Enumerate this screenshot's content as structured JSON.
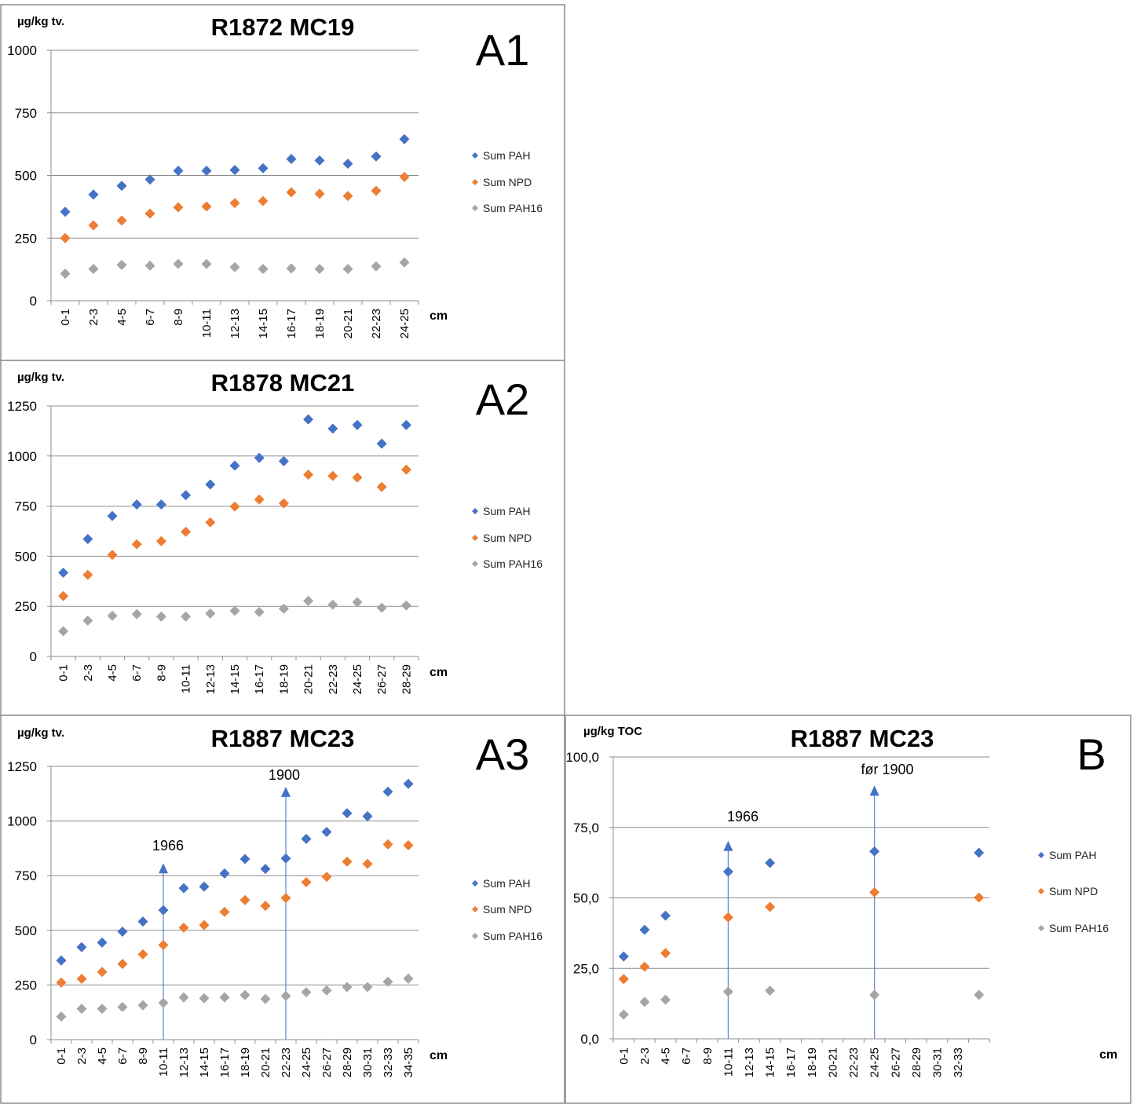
{
  "colors": {
    "Sum PAH": "#4472C4",
    "Sum NPD": "#ED7D31",
    "Sum PAH16": "#A5A5A5",
    "arrow": "#4472C4"
  },
  "chart_data": [
    {
      "id": "A1",
      "type": "scatter",
      "title": "R1872 MC19",
      "panel_label": "A1",
      "ylabel": "µg/kg tv.",
      "xlabel": "cm",
      "ylim": [
        0,
        1000
      ],
      "yticks": [
        0,
        250,
        500,
        750,
        1000
      ],
      "ytick_labels": [
        "0",
        "250",
        "500",
        "750",
        "1000"
      ],
      "grid": true,
      "legend": "right",
      "categories": [
        "0-1",
        "2-3",
        "4-5",
        "6-7",
        "8-9",
        "10-11",
        "12-13",
        "14-15",
        "16-17",
        "18-19",
        "20-21",
        "22-23",
        "24-25"
      ],
      "category_labels": [
        "0-1",
        "2-3",
        "4-5",
        "6-7",
        "8-9",
        "10-11",
        "12-13",
        "14-15",
        "16-17",
        "18-19",
        "20-21",
        "22-23",
        "24-25"
      ],
      "series": [
        {
          "name": "Sum PAH",
          "values": [
            355,
            424,
            459,
            484,
            519,
            519,
            522,
            529,
            566,
            560,
            547,
            576,
            645
          ]
        },
        {
          "name": "Sum NPD",
          "values": [
            250,
            301,
            320,
            348,
            373,
            376,
            390,
            398,
            433,
            427,
            418,
            439,
            494
          ]
        },
        {
          "name": "Sum PAH16",
          "values": [
            108,
            127,
            143,
            140,
            147,
            147,
            134,
            127,
            129,
            127,
            127,
            137,
            153
          ]
        }
      ],
      "annotations": []
    },
    {
      "id": "A2",
      "type": "scatter",
      "title": "R1878 MC21",
      "panel_label": "A2",
      "ylabel": "µg/kg tv.",
      "xlabel": "cm",
      "ylim": [
        0,
        1250
      ],
      "yticks": [
        0,
        250,
        500,
        750,
        1000,
        1250
      ],
      "ytick_labels": [
        "0",
        "250",
        "500",
        "750",
        "1000",
        "1250"
      ],
      "grid": true,
      "legend": "right",
      "categories": [
        "0-1",
        "2-3",
        "4-5",
        "6-7",
        "8-9",
        "10-11",
        "12-13",
        "14-15",
        "16-17",
        "18-19",
        "20-21",
        "22-23",
        "24-25",
        "26-27",
        "28-29"
      ],
      "category_labels": [
        "0-1",
        "2-3",
        "4-5",
        "6-7",
        "8-9",
        "10-11",
        "12-13",
        "14-15",
        "16-17",
        "18-19",
        "20-21",
        "22-23",
        "24-25",
        "26-27",
        "28-29"
      ],
      "series": [
        {
          "name": "Sum PAH",
          "values": [
            418,
            586,
            701,
            758,
            758,
            805,
            858,
            952,
            991,
            974,
            1183,
            1137,
            1155,
            1062,
            1155
          ]
        },
        {
          "name": "Sum NPD",
          "values": [
            301,
            407,
            507,
            560,
            575,
            622,
            669,
            748,
            783,
            764,
            907,
            901,
            893,
            846,
            932
          ]
        },
        {
          "name": "Sum PAH16",
          "values": [
            126,
            179,
            203,
            211,
            199,
            199,
            214,
            228,
            222,
            238,
            277,
            258,
            271,
            243,
            254
          ]
        }
      ],
      "annotations": []
    },
    {
      "id": "A3",
      "type": "scatter",
      "title": "R1887 MC23",
      "panel_label": "A3",
      "ylabel": "µg/kg tv.",
      "xlabel": "cm",
      "ylim": [
        0,
        1250
      ],
      "yticks": [
        0,
        250,
        500,
        750,
        1000,
        1250
      ],
      "ytick_labels": [
        "0",
        "250",
        "500",
        "750",
        "1000",
        "1250"
      ],
      "grid": true,
      "legend": "right",
      "categories": [
        "0-1",
        "2-3",
        "4-5",
        "6-7",
        "8-9",
        "10-11",
        "12-13",
        "14-15",
        "16-17",
        "18-19",
        "20-21",
        "22-23",
        "24-25",
        "26-27",
        "28-29",
        "30-31",
        "32-33",
        "34-35"
      ],
      "category_labels": [
        "0-1",
        "2-3",
        "4-5",
        "6-7",
        "8-9",
        "10-11",
        "12-13",
        "14-15",
        "16-17",
        "18-19",
        "20-21",
        "22-23",
        "24-25",
        "26-27",
        "28-29",
        "30-31",
        "32-33",
        "34-35"
      ],
      "series": [
        {
          "name": "Sum PAH",
          "values": [
            362,
            423,
            444,
            494,
            540,
            592,
            693,
            700,
            760,
            826,
            781,
            829,
            918,
            950,
            1036,
            1022,
            1134,
            1170
          ]
        },
        {
          "name": "Sum NPD",
          "values": [
            261,
            278,
            310,
            346,
            390,
            433,
            512,
            524,
            584,
            638,
            612,
            648,
            720,
            745,
            814,
            804,
            893,
            889
          ]
        },
        {
          "name": "Sum PAH16",
          "values": [
            105,
            141,
            141,
            149,
            157,
            168,
            193,
            189,
            193,
            204,
            186,
            200,
            217,
            225,
            240,
            240,
            265,
            279
          ]
        }
      ],
      "annotations": [
        {
          "text": "1966",
          "category": "10-11",
          "arrow_to": 800
        },
        {
          "text": "1900",
          "category": "22-23",
          "arrow_to": 1150
        }
      ]
    },
    {
      "id": "B",
      "type": "scatter",
      "title": "R1887 MC23",
      "panel_label": "B",
      "ylabel": "µg/kg TOC",
      "xlabel": "cm",
      "ylim": [
        0,
        100
      ],
      "yticks": [
        0,
        25,
        50,
        75,
        100
      ],
      "ytick_labels": [
        "0,0",
        "25,0",
        "50,0",
        "75,0",
        "100,0"
      ],
      "grid": true,
      "legend": "right",
      "categories": [
        "0-1",
        "2-3",
        "4-5",
        "6-7",
        "8-9",
        "10-11",
        "12-13",
        "14-15",
        "16-17",
        "18-19",
        "20-21",
        "22-23",
        "24-25",
        "26-27",
        "28-29",
        "30-31",
        "32-33",
        ""
      ],
      "category_labels": [
        "0-1",
        "2-3",
        "4-5",
        "6-7",
        "8-9",
        "10-11",
        "12-13",
        "14-15",
        "16-17",
        "18-19",
        "20-21",
        "22-23",
        "24-25",
        "26-27",
        "28-29",
        "30-31",
        "32-33",
        ""
      ],
      "series": [
        {
          "name": "Sum PAH",
          "values": [
            29.2,
            38.7,
            43.7,
            null,
            null,
            59.3,
            null,
            62.4,
            null,
            null,
            null,
            null,
            66.5,
            null,
            null,
            null,
            null,
            66.0
          ]
        },
        {
          "name": "Sum NPD",
          "values": [
            21.2,
            25.6,
            30.4,
            null,
            null,
            43.1,
            null,
            46.8,
            null,
            null,
            null,
            null,
            52.0,
            null,
            null,
            null,
            null,
            50.1
          ]
        },
        {
          "name": "Sum PAH16",
          "values": [
            8.6,
            13.1,
            13.9,
            null,
            null,
            16.7,
            null,
            17.1,
            null,
            null,
            null,
            null,
            15.6,
            null,
            null,
            null,
            null,
            15.6
          ]
        }
      ],
      "annotations": [
        {
          "text": "1966",
          "category": "10-11",
          "arrow_to": 69.7
        },
        {
          "text": "før 1900",
          "category": "24-25",
          "arrow_to": 89.3
        }
      ]
    }
  ]
}
